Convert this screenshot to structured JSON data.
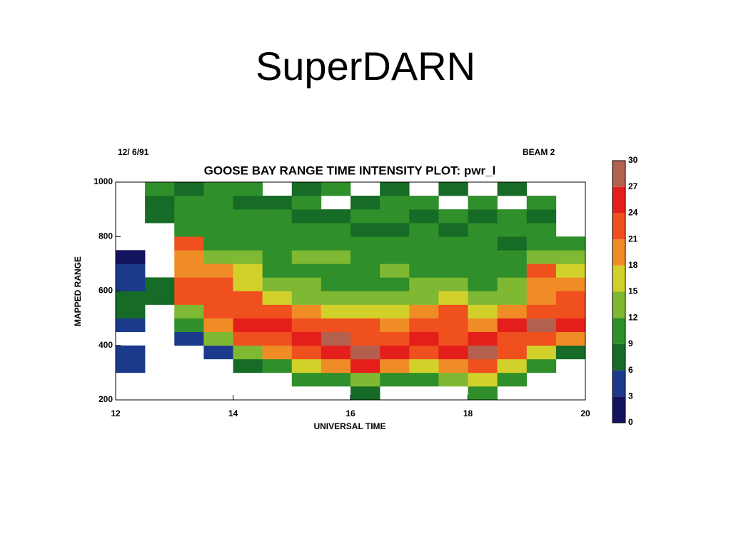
{
  "slide_title": "SuperDARN",
  "chart_data": {
    "type": "heatmap",
    "title": "GOOSE BAY RANGE TIME INTENSITY PLOT: pwr_l",
    "date": "12/ 6/91",
    "beam": "BEAM  2",
    "x_label": "UNIVERSAL TIME",
    "y_label": "MAPPED RANGE",
    "xlim": [
      12,
      20
    ],
    "xticks": [
      12,
      14,
      16,
      18,
      20
    ],
    "ylim": [
      200,
      1000
    ],
    "yticks": [
      200,
      400,
      600,
      800,
      1000
    ],
    "x": [
      12.25,
      12.75,
      13.25,
      13.75,
      14.25,
      14.75,
      15.25,
      15.75,
      16.25,
      16.75,
      17.25,
      17.75,
      18.25,
      18.75,
      19.25,
      19.75
    ],
    "y": [
      225,
      275,
      325,
      375,
      425,
      475,
      525,
      575,
      625,
      675,
      725,
      775,
      825,
      875,
      925,
      975
    ],
    "values": [
      [
        null,
        null,
        null,
        null,
        null,
        null,
        null,
        null,
        8,
        null,
        null,
        null,
        10,
        null,
        null,
        null
      ],
      [
        null,
        null,
        null,
        null,
        null,
        null,
        9,
        10,
        14,
        11,
        10,
        12,
        16,
        9,
        null,
        null
      ],
      [
        5,
        null,
        null,
        null,
        8,
        10,
        15,
        20,
        24,
        20,
        16,
        20,
        22,
        15,
        10,
        null
      ],
      [
        4,
        null,
        null,
        4,
        13,
        20,
        22,
        24,
        27,
        24,
        23,
        24,
        27,
        22,
        16,
        8
      ],
      [
        null,
        null,
        4,
        14,
        22,
        23,
        24,
        27,
        23,
        23,
        24,
        23,
        24,
        23,
        23,
        20
      ],
      [
        3,
        null,
        9,
        20,
        24,
        24,
        23,
        22,
        22,
        18,
        22,
        22,
        20,
        24,
        27,
        24
      ],
      [
        6,
        null,
        13,
        22,
        23,
        22,
        20,
        16,
        15,
        16,
        19,
        21,
        16,
        18,
        22,
        22
      ],
      [
        6,
        8,
        22,
        23,
        22,
        16,
        14,
        13,
        12,
        13,
        14,
        15,
        13,
        14,
        20,
        21
      ],
      [
        4,
        7,
        21,
        22,
        16,
        13,
        12,
        11,
        10,
        11,
        12,
        12,
        11,
        12,
        18,
        19
      ],
      [
        3,
        null,
        20,
        18,
        15,
        11,
        11,
        10,
        9,
        12,
        10,
        11,
        10,
        10,
        21,
        16
      ],
      [
        2,
        null,
        19,
        12,
        12,
        10,
        12,
        12,
        11,
        10,
        11,
        10,
        9,
        9,
        12,
        14
      ],
      [
        null,
        null,
        21,
        10,
        10,
        9,
        10,
        9,
        10,
        9,
        9,
        9,
        10,
        8,
        10,
        10
      ],
      [
        null,
        null,
        10,
        9,
        9,
        10,
        9,
        10,
        8,
        8,
        10,
        8,
        9,
        10,
        9,
        null
      ],
      [
        null,
        8,
        9,
        11,
        10,
        9,
        8,
        8,
        9,
        10,
        8,
        9,
        8,
        9,
        8,
        null
      ],
      [
        null,
        7,
        10,
        10,
        8,
        8,
        9,
        null,
        8,
        9,
        9,
        null,
        9,
        null,
        9,
        null
      ],
      [
        null,
        9,
        8,
        9,
        9,
        null,
        8,
        9,
        null,
        8,
        null,
        8,
        null,
        8,
        null,
        null
      ]
    ],
    "colorbar": {
      "levels": [
        0,
        3,
        6,
        9,
        12,
        15,
        18,
        21,
        24,
        27,
        30
      ],
      "colors": [
        "#14145e",
        "#1c3a8c",
        "#166b26",
        "#2f8f2a",
        "#7fb832",
        "#d2d12c",
        "#f08c26",
        "#f04f1e",
        "#e41e1a",
        "#b4604e"
      ]
    }
  }
}
